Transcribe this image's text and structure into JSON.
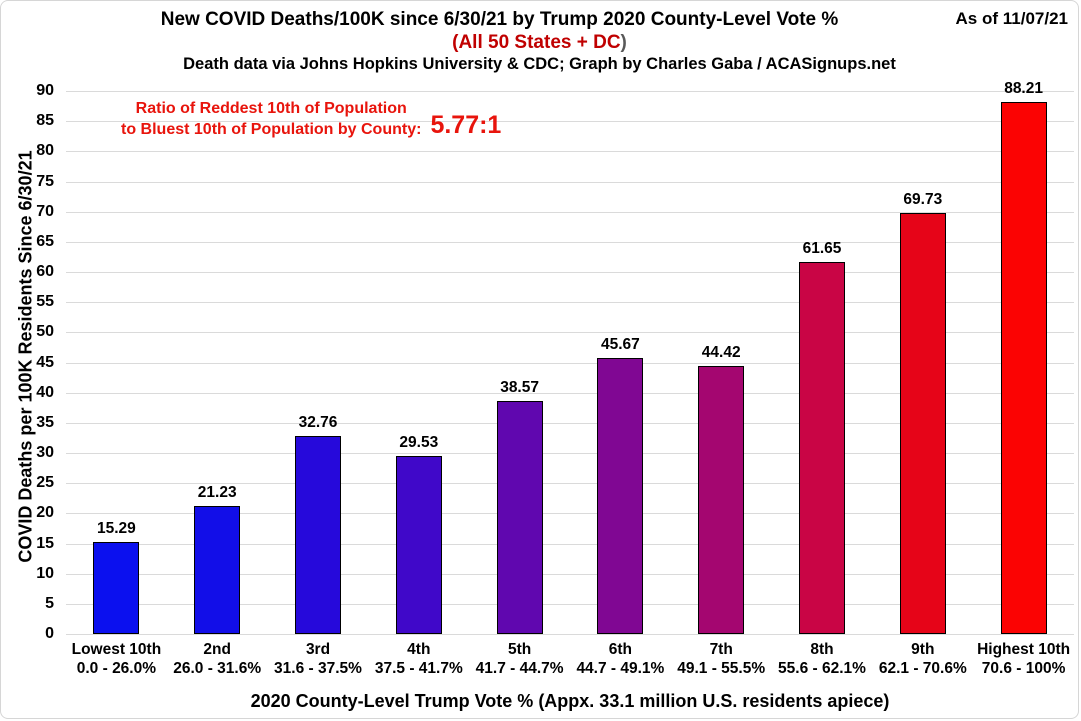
{
  "header": {
    "title": "New COVID Deaths/100K since 6/30/21 by Trump 2020 County-Level Vote %",
    "subtitle": "(All 50 States + DC",
    "subtitle_close_paren": ")",
    "credit": "Death data via Johns Hopkins University & CDC; Graph by Charles Gaba / ACASignups.net",
    "as_of": "As of 11/07/21"
  },
  "annotation": {
    "line1": "Ratio of Reddest 10th of Population",
    "line2": "to Bluest 10th of Population by County:",
    "ratio": "5.77:1"
  },
  "colors": {
    "subtitle_red": "#c00000",
    "subtitle_paren_gray": "#595959",
    "annotation_red": "#e8140c",
    "gridline": "#dadada",
    "text": "#000000",
    "bar_border": "#000000"
  },
  "chart_data": {
    "type": "bar",
    "title": "New COVID Deaths/100K since 6/30/21 by Trump 2020 County-Level Vote %",
    "subtitle": "(All 50 States + DC)",
    "xlabel": "2020 County-Level Trump Vote % (Appx. 33.1 million U.S. residents apiece)",
    "ylabel": "COVID Deaths per 100K Residents Since 6/30/21",
    "ylim": [
      0,
      90
    ],
    "yticks": [
      0,
      5,
      10,
      15,
      20,
      25,
      30,
      35,
      40,
      45,
      50,
      55,
      60,
      65,
      70,
      75,
      80,
      85,
      90
    ],
    "grid": true,
    "legend": "none",
    "categories": [
      {
        "label": "Lowest 10th",
        "range": "0.0 - 26.0%"
      },
      {
        "label": "2nd",
        "range": "26.0 - 31.6%"
      },
      {
        "label": "3rd",
        "range": "31.6 - 37.5%"
      },
      {
        "label": "4th",
        "range": "37.5 - 41.7%"
      },
      {
        "label": "5th",
        "range": "41.7 - 44.7%"
      },
      {
        "label": "6th",
        "range": "44.7 - 49.1%"
      },
      {
        "label": "7th",
        "range": "49.1 - 55.5%"
      },
      {
        "label": "8th",
        "range": "55.6 - 62.1%"
      },
      {
        "label": "9th",
        "range": "62.1 - 70.6%"
      },
      {
        "label": "Highest 10th",
        "range": "70.6 - 100%"
      }
    ],
    "values": [
      15.29,
      21.23,
      32.76,
      29.53,
      38.57,
      45.67,
      44.42,
      61.65,
      69.73,
      88.21
    ],
    "value_labels": [
      "15.29",
      "21.23",
      "32.76",
      "29.53",
      "38.57",
      "45.67",
      "44.42",
      "61.65",
      "69.73",
      "88.21"
    ],
    "bar_colors": [
      "#0b10ef",
      "#120ee8",
      "#2609db",
      "#4008c9",
      "#6007af",
      "#800793",
      "#a40670",
      "#c90545",
      "#e60418",
      "#fb0303"
    ]
  }
}
